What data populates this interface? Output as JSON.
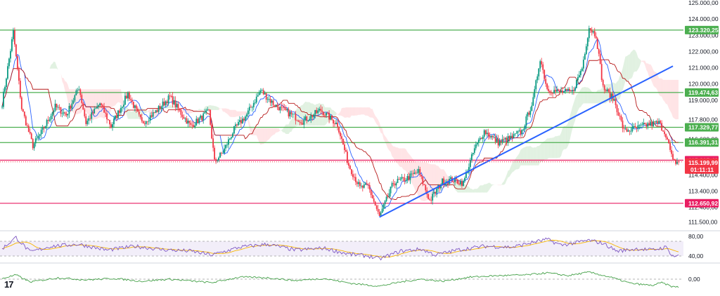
{
  "logo_text": "17",
  "colors": {
    "up": "#089981",
    "down": "#f23645",
    "support_line": "#4caf50",
    "resistance_line": "#e91e63",
    "trend_line": "#2962ff",
    "tenkan": "#2962ff",
    "kijun": "#b71c1c",
    "cloud_bull": "#c8e6c9",
    "cloud_bear": "#ffcdd2",
    "rsi_line": "#7e57c2",
    "rsi_ma": "#f7b500",
    "osc_line": "#43a047"
  },
  "chart_data": [
    {
      "type": "candlestick",
      "title": "",
      "ylim": [
        111000,
        125000
      ],
      "y_ticks": [
        {
          "value": 125000,
          "label": "125.000,00"
        },
        {
          "value": 124000,
          "label": "124.000,00"
        },
        {
          "value": 123000,
          "label": "123.000,00"
        },
        {
          "value": 122000,
          "label": "122.000,00"
        },
        {
          "value": 121000,
          "label": "121.000,00"
        },
        {
          "value": 120000,
          "label": "120.000,00"
        },
        {
          "value": 119000,
          "label": "119.000,00"
        },
        {
          "value": 117800,
          "label": "117.800,00"
        },
        {
          "value": 116600,
          "label": "116.600,00"
        },
        {
          "value": 114400,
          "label": "114.400,00"
        },
        {
          "value": 113400,
          "label": "113.400,00"
        },
        {
          "value": 112400,
          "label": "112.400,00"
        },
        {
          "value": 111500,
          "label": "111.500,00"
        }
      ],
      "levels": [
        {
          "value": 123320.25,
          "label": "123.320,25",
          "kind": "support"
        },
        {
          "value": 119474.63,
          "label": "119.474,63",
          "kind": "support"
        },
        {
          "value": 117329.77,
          "label": "117.329,77",
          "kind": "support"
        },
        {
          "value": 116391.31,
          "label": "116.391,31",
          "kind": "support"
        },
        {
          "value": 115305.42,
          "label": "115.305,42",
          "kind": "resistance"
        },
        {
          "value": 112650.92,
          "label": "112.650,92",
          "kind": "resistance"
        }
      ],
      "current_price": {
        "value": 115199.99,
        "label": "115.199,99",
        "countdown": "01:11:11"
      },
      "trend_line": {
        "from": {
          "bar": 270,
          "value": 111800
        },
        "to": {
          "bar": 480,
          "value": 121100
        }
      },
      "bars": 485,
      "price_path": [
        [
          0,
          118800
        ],
        [
          8,
          123200
        ],
        [
          14,
          118500
        ],
        [
          22,
          116200
        ],
        [
          28,
          117000
        ],
        [
          38,
          118600
        ],
        [
          46,
          118100
        ],
        [
          55,
          119800
        ],
        [
          60,
          117600
        ],
        [
          70,
          118800
        ],
        [
          78,
          117400
        ],
        [
          90,
          119400
        ],
        [
          100,
          117600
        ],
        [
          110,
          118300
        ],
        [
          120,
          119200
        ],
        [
          128,
          118200
        ],
        [
          135,
          117400
        ],
        [
          148,
          118300
        ],
        [
          152,
          115200
        ],
        [
          158,
          115800
        ],
        [
          166,
          117200
        ],
        [
          175,
          118100
        ],
        [
          185,
          119600
        ],
        [
          195,
          118700
        ],
        [
          205,
          118200
        ],
        [
          215,
          117700
        ],
        [
          228,
          118400
        ],
        [
          240,
          117500
        ],
        [
          248,
          115000
        ],
        [
          256,
          113600
        ],
        [
          262,
          113700
        ],
        [
          270,
          111800
        ],
        [
          280,
          113900
        ],
        [
          290,
          114200
        ],
        [
          298,
          114600
        ],
        [
          306,
          112800
        ],
        [
          315,
          114000
        ],
        [
          322,
          114100
        ],
        [
          330,
          113900
        ],
        [
          338,
          116000
        ],
        [
          345,
          117100
        ],
        [
          355,
          116400
        ],
        [
          365,
          116700
        ],
        [
          372,
          117100
        ],
        [
          380,
          119000
        ],
        [
          385,
          121600
        ],
        [
          390,
          119700
        ],
        [
          398,
          119500
        ],
        [
          408,
          119500
        ],
        [
          415,
          121000
        ],
        [
          420,
          123500
        ],
        [
          425,
          123000
        ],
        [
          430,
          119800
        ],
        [
          438,
          119000
        ],
        [
          445,
          117100
        ],
        [
          455,
          117300
        ],
        [
          462,
          117500
        ],
        [
          470,
          117600
        ],
        [
          475,
          116900
        ],
        [
          480,
          115200
        ]
      ]
    },
    {
      "type": "line",
      "ylim": [
        30,
        90
      ],
      "y_ticks": [
        {
          "value": 80,
          "label": "80,00"
        },
        {
          "value": 40,
          "label": "40,00"
        }
      ],
      "band": [
        40,
        70
      ],
      "path": [
        [
          0,
          55
        ],
        [
          10,
          78
        ],
        [
          20,
          48
        ],
        [
          35,
          60
        ],
        [
          55,
          64
        ],
        [
          75,
          52
        ],
        [
          95,
          60
        ],
        [
          115,
          53
        ],
        [
          135,
          50
        ],
        [
          150,
          42
        ],
        [
          170,
          58
        ],
        [
          190,
          64
        ],
        [
          210,
          52
        ],
        [
          230,
          56
        ],
        [
          248,
          44
        ],
        [
          262,
          40
        ],
        [
          270,
          34
        ],
        [
          285,
          50
        ],
        [
          300,
          54
        ],
        [
          310,
          42
        ],
        [
          325,
          52
        ],
        [
          345,
          60
        ],
        [
          365,
          58
        ],
        [
          380,
          68
        ],
        [
          390,
          74
        ],
        [
          400,
          62
        ],
        [
          420,
          72
        ],
        [
          430,
          66
        ],
        [
          440,
          50
        ],
        [
          455,
          55
        ],
        [
          465,
          52
        ],
        [
          475,
          58
        ],
        [
          480,
          40
        ]
      ]
    },
    {
      "type": "line",
      "ylim": [
        -2,
        2
      ],
      "y_ticks": [
        {
          "value": 0,
          "label": "0,00"
        }
      ],
      "path": [
        [
          0,
          0.1
        ],
        [
          10,
          0.6
        ],
        [
          20,
          -0.4
        ],
        [
          40,
          0.2
        ],
        [
          60,
          -0.1
        ],
        [
          80,
          0.1
        ],
        [
          100,
          -0.3
        ],
        [
          120,
          0.0
        ],
        [
          150,
          -0.5
        ],
        [
          170,
          0.3
        ],
        [
          190,
          0.2
        ],
        [
          210,
          -0.2
        ],
        [
          230,
          0.1
        ],
        [
          250,
          -0.6
        ],
        [
          270,
          -1.0
        ],
        [
          285,
          -0.4
        ],
        [
          300,
          0.0
        ],
        [
          315,
          -0.3
        ],
        [
          335,
          0.3
        ],
        [
          355,
          0.5
        ],
        [
          375,
          0.6
        ],
        [
          390,
          0.9
        ],
        [
          405,
          0.5
        ],
        [
          420,
          1.0
        ],
        [
          435,
          0.3
        ],
        [
          450,
          -0.6
        ],
        [
          465,
          -0.9
        ],
        [
          472,
          -0.5
        ],
        [
          480,
          -1.1
        ]
      ]
    }
  ]
}
